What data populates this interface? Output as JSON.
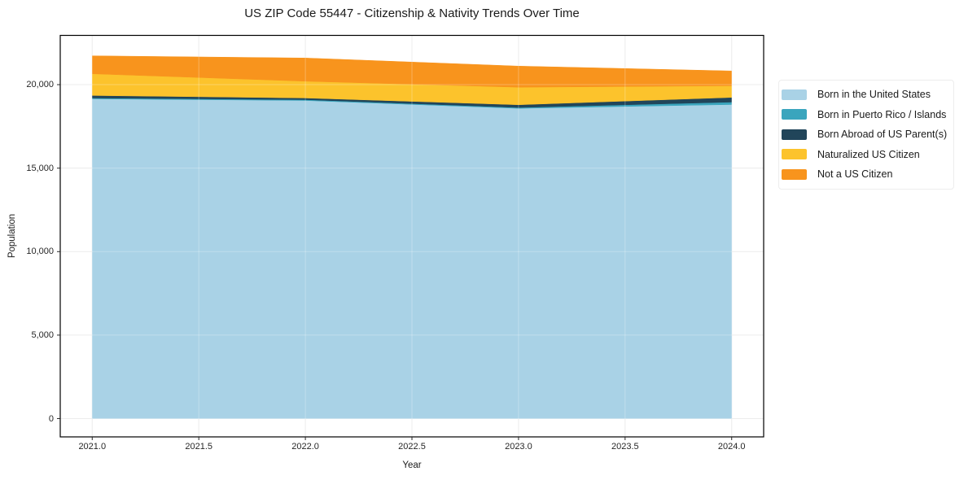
{
  "figure": {
    "title": "US ZIP Code 55447 - Citizenship & Nativity Trends Over Time",
    "xlabel": "Year",
    "ylabel": "Population"
  },
  "chart_data": {
    "type": "area",
    "stacked": true,
    "title": "US ZIP Code 55447 - Citizenship & Nativity Trends Over Time",
    "xlabel": "Year",
    "ylabel": "Population",
    "x": [
      2021,
      2022,
      2023,
      2024
    ],
    "series": [
      {
        "name": "Born in the United States",
        "color": "#a9d2e6",
        "values": [
          19150,
          19050,
          18580,
          18810
        ]
      },
      {
        "name": "Born in Puerto Rico / Islands",
        "color": "#3aa5bd",
        "values": [
          50,
          50,
          50,
          145
        ]
      },
      {
        "name": "Born Abroad of US Parent(s)",
        "color": "#21455a",
        "values": [
          150,
          100,
          165,
          280
        ]
      },
      {
        "name": "Naturalized US Citizen",
        "color": "#fcc32c",
        "values": [
          1300,
          1005,
          1050,
          695
        ]
      },
      {
        "name": "Not a US Citizen",
        "color": "#f8941d",
        "values": [
          1075,
          1390,
          1265,
          890
        ]
      }
    ],
    "totals": [
      21725,
      21595,
      21110,
      20820
    ],
    "xlim": [
      2020.85,
      2024.15
    ],
    "ylim": [
      -1095,
      22950
    ],
    "xticks": {
      "values": [
        2021.0,
        2021.5,
        2022.0,
        2022.5,
        2023.0,
        2023.5,
        2024.0
      ],
      "labels": [
        "2021.0",
        "2021.5",
        "2022.0",
        "2022.5",
        "2023.0",
        "2023.5",
        "2024.0"
      ]
    },
    "yticks": {
      "values": [
        0,
        5000,
        10000,
        15000,
        20000
      ],
      "labels": [
        "0",
        "5,000",
        "10,000",
        "15,000",
        "20,000"
      ]
    },
    "grid": true,
    "legend_position": "right"
  },
  "colors": {
    "grid": "#e7e7e7",
    "grid_overlay": "rgba(255,255,255,0.28)",
    "spine": "#000000",
    "tick": "#262626"
  }
}
